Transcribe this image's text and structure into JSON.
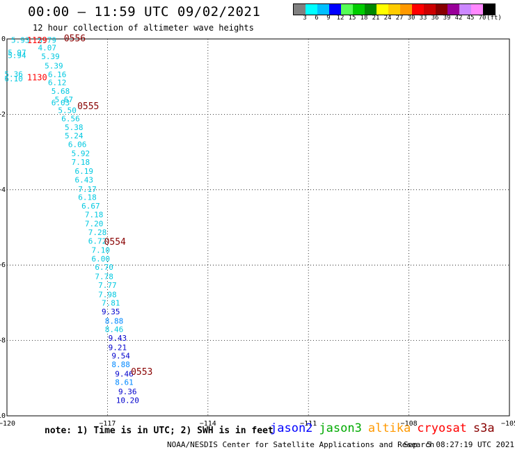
{
  "header": {
    "title": "00:00 – 11:59 UTC 09/02/2021",
    "subtitle": "12 hour collection of altimeter wave heights"
  },
  "colorbar": {
    "colors": [
      "#808080",
      "#00ffff",
      "#00bfff",
      "#0000ff",
      "#55ff55",
      "#00cc00",
      "#008800",
      "#ffff00",
      "#ffcc00",
      "#ff9900",
      "#ff0000",
      "#cc0000",
      "#880000",
      "#990099",
      "#cc88ff",
      "#ff88ff",
      "#000000"
    ],
    "labels": [
      "3",
      "6",
      "9",
      "12",
      "15",
      "18",
      "21",
      "24",
      "27",
      "30",
      "33",
      "36",
      "39",
      "42",
      "45",
      "70",
      "(ft)"
    ]
  },
  "footer": {
    "note": "note: 1) Time is in UTC; 2) SWH is in feet",
    "credit": "NOAA/NESDIS Center for Satellite Applications and Research",
    "timestamp": "Sep  5 08:27:19 UTC 2021"
  },
  "legend": [
    {
      "name": "jason2",
      "color": "#0000ff"
    },
    {
      "name": "jason3",
      "color": "#00aa00"
    },
    {
      "name": "altika",
      "color": "#ff9900"
    },
    {
      "name": "cryosat",
      "color": "#ff0000"
    },
    {
      "name": "s3a",
      "color": "#880000"
    }
  ],
  "chart_data": {
    "type": "scatter",
    "title": "00:00 – 11:59 UTC 09/02/2021",
    "subtitle": "12 hour collection of altimeter wave heights",
    "xlim": [
      -120,
      -105
    ],
    "ylim": [
      -10,
      0
    ],
    "xticks": [
      -120,
      -117,
      -114,
      -111,
      -108,
      -105
    ],
    "yticks": [
      0,
      -2,
      -4,
      -6,
      -8,
      -10
    ],
    "grid": true,
    "units": "ft",
    "series": [
      {
        "name": "s3a",
        "color": "#00e5ee",
        "points": [
          {
            "lon": -119.6,
            "lat": -0.05,
            "v": "5.93"
          },
          {
            "lon": -118.8,
            "lat": -0.05,
            "v": "5.79"
          },
          {
            "lon": -118.8,
            "lat": -0.25,
            "v": "4.07"
          },
          {
            "lon": -119.7,
            "lat": -0.38,
            "v": "5.97"
          },
          {
            "lon": -119.7,
            "lat": -0.45,
            "v": "5.94"
          },
          {
            "lon": -118.7,
            "lat": -0.48,
            "v": "5.39"
          },
          {
            "lon": -118.6,
            "lat": -0.73,
            "v": "5.39"
          },
          {
            "lon": -119.8,
            "lat": -0.95,
            "v": "5.36"
          },
          {
            "lon": -118.5,
            "lat": -0.96,
            "v": "6.16"
          },
          {
            "lon": -119.8,
            "lat": -1.07,
            "v": "6.10"
          },
          {
            "lon": -118.5,
            "lat": -1.17,
            "v": "6.12"
          },
          {
            "lon": -118.4,
            "lat": -1.4,
            "v": "5.68"
          },
          {
            "lon": -118.3,
            "lat": -1.62,
            "v": "5.67"
          },
          {
            "lon": -118.4,
            "lat": -1.71,
            "v": "6.03"
          },
          {
            "lon": -118.2,
            "lat": -1.91,
            "v": "5.50"
          },
          {
            "lon": -118.1,
            "lat": -2.13,
            "v": "6.56"
          },
          {
            "lon": -118.0,
            "lat": -2.36,
            "v": "5.38"
          },
          {
            "lon": -118.0,
            "lat": -2.58,
            "v": "5.24"
          },
          {
            "lon": -117.9,
            "lat": -2.81,
            "v": "6.06"
          },
          {
            "lon": -117.8,
            "lat": -3.05,
            "v": "5.92"
          },
          {
            "lon": -117.8,
            "lat": -3.28,
            "v": "7.18"
          },
          {
            "lon": -117.7,
            "lat": -3.52,
            "v": "6.19"
          },
          {
            "lon": -117.7,
            "lat": -3.75,
            "v": "6.43"
          },
          {
            "lon": -117.6,
            "lat": -4.0,
            "v": "7.17"
          },
          {
            "lon": -117.6,
            "lat": -4.22,
            "v": "6.18"
          },
          {
            "lon": -117.5,
            "lat": -4.45,
            "v": "6.67"
          },
          {
            "lon": -117.4,
            "lat": -4.68,
            "v": "7.18"
          },
          {
            "lon": -117.4,
            "lat": -4.92,
            "v": "7.20"
          },
          {
            "lon": -117.3,
            "lat": -5.15,
            "v": "7.28"
          },
          {
            "lon": -117.3,
            "lat": -5.38,
            "v": "6.72"
          },
          {
            "lon": -117.2,
            "lat": -5.62,
            "v": "7.10"
          },
          {
            "lon": -117.2,
            "lat": -5.85,
            "v": "6.00"
          },
          {
            "lon": -117.1,
            "lat": -6.07,
            "v": "6.70"
          },
          {
            "lon": -117.1,
            "lat": -6.32,
            "v": "7.78"
          },
          {
            "lon": -117.0,
            "lat": -6.55,
            "v": "7.77"
          },
          {
            "lon": -117.0,
            "lat": -6.8,
            "v": "7.98"
          },
          {
            "lon": -116.9,
            "lat": -7.02,
            "v": "7.81"
          },
          {
            "lon": -116.9,
            "lat": -7.25,
            "v": "9.35"
          },
          {
            "lon": -116.8,
            "lat": -7.5,
            "v": "8.88"
          },
          {
            "lon": -116.8,
            "lat": -7.72,
            "v": "8.46"
          },
          {
            "lon": -116.7,
            "lat": -7.95,
            "v": "9.43"
          },
          {
            "lon": -116.7,
            "lat": -8.2,
            "v": "9.21"
          },
          {
            "lon": -116.6,
            "lat": -8.42,
            "v": "9.54"
          },
          {
            "lon": -116.6,
            "lat": -8.65,
            "v": "8.88"
          },
          {
            "lon": -116.5,
            "lat": -8.9,
            "v": "9.46"
          },
          {
            "lon": -116.5,
            "lat": -9.12,
            "v": "8.61"
          },
          {
            "lon": -116.4,
            "lat": -9.37,
            "v": "9.36"
          },
          {
            "lon": -116.4,
            "lat": -9.6,
            "v": "10.20"
          }
        ]
      },
      {
        "name": "cryosat",
        "color": "#ff0000",
        "points": [
          {
            "lon": -119.1,
            "lat": -0.05,
            "v": "1129"
          },
          {
            "lon": -119.1,
            "lat": -1.03,
            "v": "1130"
          }
        ]
      }
    ],
    "time_labels": [
      {
        "lon": -118.3,
        "lat": 0.0,
        "v": "0556"
      },
      {
        "lon": -117.9,
        "lat": -1.8,
        "v": "0555"
      },
      {
        "lon": -117.1,
        "lat": -5.4,
        "v": "0554"
      },
      {
        "lon": -116.3,
        "lat": -8.85,
        "v": "0553"
      }
    ]
  }
}
